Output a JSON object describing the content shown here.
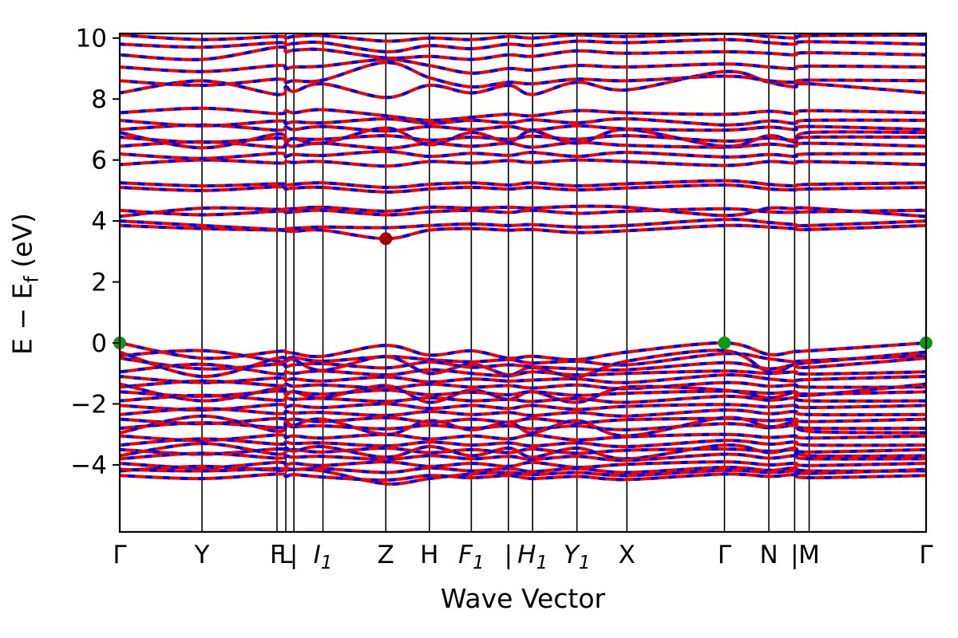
{
  "figure": {
    "title": "",
    "background": "#ffffff"
  },
  "chart_data": {
    "type": "line",
    "subtype": "electronic-band-structure",
    "title": "",
    "xlabel": "Wave Vector",
    "ylabel": "E − Ef (eV)",
    "ylabel_parts": {
      "main": "E − E",
      "sub": "f",
      "unit": " (eV)"
    },
    "xlim": [
      0,
      1
    ],
    "ylim": [
      -6.2,
      10.15
    ],
    "grid": "vertical-lines-at-kpoints",
    "legend": "none",
    "fermi_level": 0,
    "yticks": [
      {
        "v": 10,
        "label": "10"
      },
      {
        "v": 8,
        "label": "8"
      },
      {
        "v": 6,
        "label": "6"
      },
      {
        "v": 4,
        "label": "4"
      },
      {
        "v": 2,
        "label": "2"
      },
      {
        "v": 0,
        "label": "0"
      },
      {
        "v": -2,
        "label": "−2"
      },
      {
        "v": -4,
        "label": "−4"
      }
    ],
    "kpath": {
      "ticks": [
        {
          "x": 0.0,
          "label": "Γ",
          "sub": "",
          "italic": false
        },
        {
          "x": 0.102,
          "label": "Y",
          "sub": "",
          "italic": false
        },
        {
          "x": 0.195,
          "label": "F",
          "sub": "",
          "italic": false
        },
        {
          "x": 0.206,
          "label": "L",
          "sub": "",
          "italic": false
        },
        {
          "x": 0.216,
          "label": "|",
          "sub": "",
          "italic": false
        },
        {
          "x": 0.252,
          "label": "I",
          "sub": "1",
          "italic": true
        },
        {
          "x": 0.33,
          "label": "Z",
          "sub": "",
          "italic": false
        },
        {
          "x": 0.384,
          "label": "H",
          "sub": "",
          "italic": false
        },
        {
          "x": 0.436,
          "label": "F",
          "sub": "1",
          "italic": true
        },
        {
          "x": 0.482,
          "label": "|",
          "sub": "",
          "italic": false
        },
        {
          "x": 0.512,
          "label": "H",
          "sub": "1",
          "italic": true
        },
        {
          "x": 0.567,
          "label": "Y",
          "sub": "1",
          "italic": true
        },
        {
          "x": 0.629,
          "label": "X",
          "sub": "",
          "italic": false
        },
        {
          "x": 0.75,
          "label": "Γ",
          "sub": "",
          "italic": false
        },
        {
          "x": 0.805,
          "label": "N",
          "sub": "",
          "italic": false
        },
        {
          "x": 0.837,
          "label": "|",
          "sub": "",
          "italic": false
        },
        {
          "x": 0.855,
          "label": "M",
          "sub": "",
          "italic": false
        },
        {
          "x": 1.0,
          "label": "Γ",
          "sub": "",
          "italic": false
        }
      ]
    },
    "k_fractions": [
      0.0,
      0.102,
      0.195,
      0.206,
      0.216,
      0.252,
      0.33,
      0.384,
      0.436,
      0.482,
      0.512,
      0.567,
      0.629,
      0.75,
      0.805,
      0.837,
      0.855,
      1.0
    ],
    "bands": [
      [
        0.0,
        -0.5,
        -0.28,
        -0.3,
        -0.34,
        -0.44,
        -0.08,
        -0.4,
        -0.26,
        -0.5,
        -0.44,
        -0.55,
        -0.3,
        0.0,
        -0.38,
        -0.28,
        -0.26,
        0.0
      ],
      [
        -0.42,
        -0.25,
        -0.6,
        -0.55,
        -0.48,
        -0.6,
        -0.45,
        -0.55,
        -0.62,
        -0.55,
        -0.66,
        -0.6,
        -0.72,
        -0.35,
        -0.52,
        -0.62,
        -0.58,
        -0.42
      ],
      [
        -0.3,
        -1.1,
        -0.5,
        -0.6,
        -0.55,
        -0.9,
        -0.45,
        -1.0,
        -0.7,
        -1.05,
        -0.8,
        -1.1,
        -0.6,
        -0.25,
        -0.95,
        -0.7,
        -0.65,
        -0.3
      ],
      [
        -0.5,
        -0.85,
        -0.7,
        -0.78,
        -0.72,
        -0.68,
        -0.82,
        -0.62,
        -0.8,
        -0.72,
        -0.78,
        -0.85,
        -0.88,
        -0.65,
        -0.85,
        -0.72,
        -0.8,
        -0.5
      ],
      [
        -0.95,
        -0.7,
        -1.02,
        -0.95,
        -1.0,
        -0.92,
        -1.05,
        -0.88,
        -1.0,
        -1.08,
        -0.95,
        -1.05,
        -1.0,
        -0.92,
        -1.0,
        -0.95,
        -1.02,
        -0.95
      ],
      [
        -1.1,
        -1.3,
        -1.15,
        -1.22,
        -1.18,
        -1.25,
        -1.12,
        -1.28,
        -1.18,
        -1.25,
        -1.22,
        -1.18,
        -1.3,
        -1.05,
        -1.18,
        -1.25,
        -1.2,
        -1.1
      ],
      [
        -1.45,
        -1.25,
        -1.4,
        -1.35,
        -1.42,
        -1.38,
        -1.48,
        -1.35,
        -1.45,
        -1.4,
        -1.48,
        -1.38,
        -1.5,
        -1.3,
        -1.42,
        -1.38,
        -1.45,
        -1.45
      ],
      [
        -1.35,
        -1.9,
        -1.5,
        -1.7,
        -1.6,
        -1.8,
        -1.4,
        -1.95,
        -1.55,
        -1.85,
        -1.6,
        -1.95,
        -1.45,
        -1.55,
        -1.8,
        -1.62,
        -1.72,
        -1.35
      ],
      [
        -1.6,
        -1.75,
        -1.58,
        -1.65,
        -1.6,
        -1.68,
        -1.55,
        -1.7,
        -1.62,
        -1.7,
        -1.6,
        -1.72,
        -1.65,
        -1.58,
        -1.65,
        -1.6,
        -1.68,
        -1.6
      ],
      [
        -1.9,
        -1.72,
        -1.88,
        -1.8,
        -1.85,
        -1.82,
        -1.92,
        -1.8,
        -1.9,
        -1.85,
        -1.92,
        -1.82,
        -1.95,
        -1.75,
        -1.88,
        -1.8,
        -1.9,
        -1.9
      ],
      [
        -2.05,
        -2.2,
        -2.02,
        -2.1,
        -2.05,
        -2.12,
        -2.0,
        -2.15,
        -2.05,
        -2.15,
        -2.05,
        -2.18,
        -2.08,
        -2.02,
        -2.1,
        -2.05,
        -2.12,
        -2.05
      ],
      [
        -2.35,
        -2.15,
        -2.32,
        -2.25,
        -2.3,
        -2.28,
        -2.38,
        -2.25,
        -2.35,
        -2.28,
        -2.38,
        -2.28,
        -2.4,
        -2.2,
        -2.32,
        -2.25,
        -2.35,
        -2.35
      ],
      [
        -2.5,
        -2.65,
        -2.48,
        -2.55,
        -2.5,
        -2.58,
        -2.45,
        -2.6,
        -2.5,
        -2.6,
        -2.48,
        -2.62,
        -2.52,
        -2.48,
        -2.55,
        -2.5,
        -2.58,
        -2.5
      ],
      [
        -2.8,
        -2.62,
        -2.78,
        -2.7,
        -2.75,
        -2.72,
        -2.82,
        -2.7,
        -2.8,
        -2.72,
        -2.82,
        -2.72,
        -2.85,
        -2.65,
        -2.78,
        -2.7,
        -2.8,
        -2.8
      ],
      [
        -2.95,
        -2.4,
        -2.9,
        -2.6,
        -2.7,
        -2.5,
        -3.0,
        -2.55,
        -2.85,
        -2.6,
        -2.95,
        -2.55,
        -3.05,
        -2.45,
        -2.75,
        -2.6,
        -2.9,
        -2.95
      ],
      [
        -3.05,
        -3.2,
        -3.02,
        -3.1,
        -3.05,
        -3.12,
        -3.0,
        -3.15,
        -3.05,
        -3.15,
        -3.02,
        -3.18,
        -3.08,
        -3.0,
        -3.1,
        -3.05,
        -3.12,
        -3.05
      ],
      [
        -3.35,
        -3.15,
        -3.32,
        -3.25,
        -3.3,
        -3.28,
        -3.38,
        -3.25,
        -3.35,
        -3.28,
        -3.38,
        -3.28,
        -3.4,
        -3.2,
        -3.32,
        -3.25,
        -3.35,
        -3.35
      ],
      [
        -3.5,
        -3.65,
        -3.48,
        -3.55,
        -3.5,
        -3.58,
        -3.45,
        -3.6,
        -3.5,
        -3.6,
        -3.48,
        -3.62,
        -3.52,
        -3.48,
        -3.55,
        -3.5,
        -3.58,
        -3.5
      ],
      [
        -3.7,
        -3.3,
        -3.65,
        -3.45,
        -3.55,
        -3.4,
        -3.75,
        -3.4,
        -3.7,
        -3.45,
        -3.75,
        -3.45,
        -3.8,
        -3.35,
        -3.6,
        -3.45,
        -3.7,
        -3.7
      ],
      [
        -3.8,
        -3.62,
        -3.78,
        -3.7,
        -3.75,
        -3.72,
        -3.82,
        -3.7,
        -3.8,
        -3.72,
        -3.82,
        -3.72,
        -3.85,
        -3.65,
        -3.78,
        -3.7,
        -3.8,
        -3.8
      ],
      [
        -3.95,
        -4.1,
        -3.92,
        -4.0,
        -3.95,
        -4.02,
        -3.9,
        -4.05,
        -3.95,
        -4.05,
        -3.92,
        -4.08,
        -3.98,
        -3.9,
        -4.0,
        -3.95,
        -4.02,
        -3.95
      ],
      [
        -4.2,
        -4.05,
        -4.18,
        -4.1,
        -4.15,
        -4.12,
        -4.25,
        -4.1,
        -4.2,
        -4.12,
        -4.22,
        -4.12,
        -4.25,
        -4.08,
        -4.18,
        -4.1,
        -4.2,
        -4.2
      ],
      [
        -4.15,
        -4.2,
        -4.12,
        -4.18,
        -4.15,
        -4.2,
        -4.62,
        -4.45,
        -4.3,
        -4.25,
        -4.32,
        -4.25,
        -4.35,
        -4.18,
        -4.25,
        -4.2,
        -4.28,
        -4.15
      ],
      [
        -4.35,
        -4.45,
        -4.3,
        -4.38,
        -4.32,
        -4.4,
        -4.5,
        -4.35,
        -4.42,
        -4.35,
        -4.45,
        -4.38,
        -4.48,
        -4.3,
        -4.38,
        -4.32,
        -4.42,
        -4.35
      ],
      [
        3.85,
        3.75,
        3.7,
        3.68,
        3.66,
        3.7,
        3.42,
        3.7,
        3.75,
        3.7,
        3.72,
        3.62,
        3.68,
        3.85,
        3.8,
        3.75,
        3.72,
        3.85
      ],
      [
        4.0,
        3.85,
        3.72,
        3.74,
        3.76,
        3.8,
        3.78,
        3.85,
        3.9,
        3.85,
        3.88,
        3.8,
        3.85,
        4.05,
        3.95,
        3.88,
        3.85,
        4.0
      ],
      [
        4.15,
        4.42,
        4.38,
        4.4,
        4.4,
        4.45,
        4.32,
        4.45,
        4.42,
        4.45,
        4.42,
        4.48,
        4.45,
        4.18,
        4.42,
        4.4,
        4.42,
        4.15
      ],
      [
        4.35,
        4.2,
        4.32,
        4.28,
        4.3,
        4.35,
        4.2,
        4.3,
        4.35,
        4.28,
        4.35,
        4.25,
        4.32,
        4.4,
        4.3,
        4.28,
        4.3,
        4.35
      ],
      [
        5.1,
        5.0,
        5.12,
        5.05,
        5.08,
        5.1,
        4.95,
        5.05,
        5.1,
        5.05,
        5.1,
        5.02,
        5.08,
        5.18,
        5.05,
        5.02,
        5.05,
        5.1
      ],
      [
        5.25,
        5.15,
        5.22,
        5.18,
        5.2,
        5.25,
        5.1,
        5.2,
        5.25,
        5.18,
        5.25,
        5.15,
        5.22,
        5.32,
        5.2,
        5.15,
        5.2,
        5.25
      ],
      [
        5.85,
        6.0,
        5.9,
        5.95,
        5.92,
        5.95,
        5.8,
        5.95,
        5.9,
        5.98,
        5.92,
        6.0,
        5.95,
        5.82,
        5.95,
        5.9,
        5.95,
        5.85
      ],
      [
        6.2,
        6.05,
        6.22,
        6.12,
        6.18,
        6.15,
        6.28,
        6.12,
        6.22,
        6.15,
        6.25,
        6.12,
        6.25,
        6.1,
        6.18,
        6.12,
        6.2,
        6.2
      ],
      [
        6.45,
        6.6,
        6.42,
        6.52,
        6.45,
        6.55,
        6.38,
        6.55,
        6.45,
        6.55,
        6.42,
        6.58,
        6.48,
        6.42,
        6.52,
        6.45,
        6.55,
        6.45
      ],
      [
        6.9,
        6.4,
        6.85,
        6.6,
        6.7,
        6.55,
        7.05,
        6.5,
        6.9,
        6.6,
        6.95,
        6.55,
        7.0,
        6.45,
        6.8,
        6.6,
        6.9,
        6.9
      ],
      [
        6.75,
        6.58,
        6.72,
        6.65,
        6.7,
        6.68,
        6.8,
        6.65,
        6.75,
        6.68,
        6.78,
        6.68,
        6.8,
        6.62,
        6.72,
        6.65,
        6.75,
        6.75
      ],
      [
        7.0,
        7.15,
        6.98,
        7.08,
        7.0,
        7.1,
        6.95,
        7.1,
        7.0,
        7.1,
        6.98,
        7.12,
        7.02,
        6.98,
        7.08,
        7.0,
        7.1,
        7.0
      ],
      [
        7.3,
        7.12,
        7.28,
        7.2,
        7.25,
        7.22,
        7.35,
        7.2,
        7.3,
        7.22,
        7.32,
        7.22,
        7.35,
        7.15,
        7.28,
        7.2,
        7.3,
        7.3
      ],
      [
        7.55,
        7.7,
        7.52,
        7.62,
        7.55,
        7.65,
        7.45,
        7.3,
        7.4,
        7.5,
        7.45,
        7.62,
        7.55,
        7.5,
        7.6,
        7.52,
        7.62,
        7.55
      ],
      [
        8.2,
        8.6,
        8.15,
        8.4,
        8.25,
        8.5,
        8.05,
        8.45,
        8.2,
        8.45,
        8.15,
        8.55,
        8.3,
        8.9,
        8.55,
        8.4,
        8.5,
        8.2
      ],
      [
        8.6,
        8.45,
        8.65,
        8.55,
        8.6,
        8.62,
        9.2,
        8.7,
        8.4,
        8.55,
        8.5,
        8.65,
        8.6,
        8.75,
        8.6,
        8.55,
        8.62,
        8.6
      ],
      [
        9.05,
        8.9,
        9.1,
        9.0,
        9.05,
        9.08,
        9.3,
        9.1,
        8.85,
        9.0,
        8.95,
        9.1,
        9.05,
        9.15,
        9.05,
        9.0,
        9.08,
        9.05
      ],
      [
        9.45,
        9.3,
        9.7,
        9.55,
        9.6,
        9.62,
        9.35,
        9.4,
        9.3,
        9.45,
        9.4,
        9.58,
        9.5,
        9.55,
        9.5,
        9.45,
        9.52,
        9.45
      ],
      [
        9.8,
        9.7,
        9.85,
        9.78,
        9.82,
        9.85,
        9.55,
        9.75,
        9.65,
        9.8,
        9.75,
        9.9,
        9.85,
        9.95,
        9.85,
        9.8,
        9.88,
        9.8
      ],
      [
        10.1,
        9.95,
        10.05,
        10.0,
        10.05,
        10.08,
        9.9,
        10.0,
        9.95,
        10.05,
        10.0,
        10.1,
        10.05,
        10.15,
        10.05,
        10.0,
        10.08,
        10.1
      ]
    ],
    "style": {
      "band_color": "#ee0000",
      "band_overlay_color": "#0000ee",
      "band_width": 4,
      "overlay_dash": "9 13",
      "gridline_color": "#000000",
      "axis_color": "#000000"
    },
    "markers": {
      "vbm": {
        "color": "#0b9a0b",
        "radius": 8,
        "points": [
          {
            "x": 0.0,
            "e": 0.0
          },
          {
            "x": 0.75,
            "e": 0.0
          },
          {
            "x": 1.0,
            "e": 0.0
          }
        ]
      },
      "cbm": {
        "color": "#a40000",
        "radius": 8,
        "points": [
          {
            "x": 0.33,
            "e": 3.42
          }
        ]
      }
    }
  }
}
